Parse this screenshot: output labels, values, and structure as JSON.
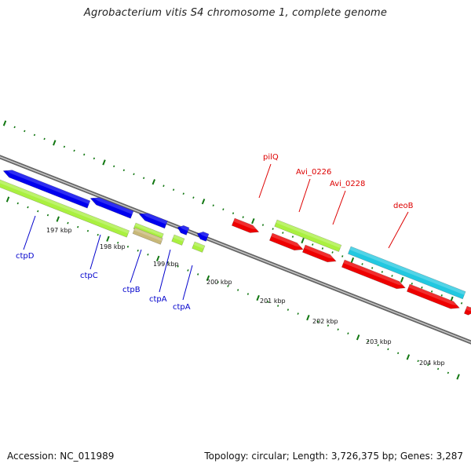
{
  "title": "Agrobacterium vitis S4 chromosome 1, complete genome",
  "footer": {
    "accession": "Accession: NC_011989",
    "summary": "Topology: circular; Length: 3,726,375 bp; Genes: 3,287"
  },
  "colors": {
    "backbone": "#8a8a8a",
    "tick": "#117711",
    "forward_cds": "#0000ee",
    "forward_label": "#0000cc",
    "reverse_cds": "#ee0000",
    "reverse_label": "#dd0000",
    "green_feature": "#aaf040",
    "tan_feature": "#c8b878",
    "cyan_feature": "#22c8e0"
  },
  "scale": {
    "unit": "kbp",
    "labels": [
      "197 kbp",
      "198 kbp",
      "199 kbp",
      "200 kbp",
      "201 kbp",
      "202 kbp",
      "203 kbp",
      "204 kbp"
    ]
  },
  "gene_labels": {
    "forward": [
      "ctpD",
      "ctpC",
      "ctpB",
      "ctpA",
      "ctpA"
    ],
    "reverse": [
      "pilQ",
      "Avi_0226",
      "Avi_0228",
      "deoB"
    ]
  }
}
